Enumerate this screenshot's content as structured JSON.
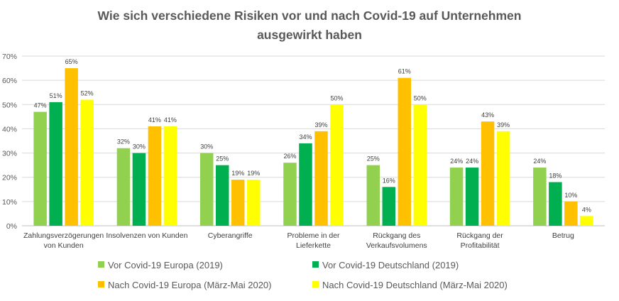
{
  "chart_data": {
    "type": "bar",
    "title_lines": [
      "Wie sich verschiedene Risiken vor und nach Covid-19 auf Unternehmen",
      "ausgewirkt haben"
    ],
    "xlabel": "",
    "ylabel": "",
    "ylim": [
      0,
      70
    ],
    "yticks": [
      0,
      10,
      20,
      30,
      40,
      50,
      60,
      70
    ],
    "ytick_labels": [
      "0%",
      "10%",
      "20%",
      "30%",
      "40%",
      "50%",
      "60%",
      "70%"
    ],
    "grid": true,
    "legend_position": "bottom",
    "categories": [
      [
        "Zahlungsverzögerungen",
        "von Kunden"
      ],
      [
        "Insolvenzen von Kunden"
      ],
      [
        "Cyberangriffe"
      ],
      [
        "Probleme in der",
        "Lieferkette"
      ],
      [
        "Rückgang des",
        "Verkaufsvolumens"
      ],
      [
        "Rückgang der",
        "Profitabilität"
      ],
      [
        "Betrug"
      ]
    ],
    "series": [
      {
        "name": "Vor Covid-19 Europa (2019)",
        "color": "#92d050",
        "values": [
          47,
          32,
          30,
          26,
          25,
          24,
          24
        ],
        "labels": [
          "47%",
          "32%",
          "30%",
          "26%",
          "25%",
          "24%",
          "24%"
        ]
      },
      {
        "name": "Vor Covid-19 Deutschland (2019)",
        "color": "#00b050",
        "values": [
          51,
          30,
          25,
          34,
          16,
          24,
          18
        ],
        "labels": [
          "51%",
          "30%",
          "25%",
          "34%",
          "16%",
          "24%",
          "18%"
        ]
      },
      {
        "name": "Nach Covid-19 Europa (März-Mai 2020)",
        "color": "#ffc000",
        "values": [
          65,
          41,
          19,
          39,
          61,
          43,
          10
        ],
        "labels": [
          "65%",
          "41%",
          "19%",
          "39%",
          "61%",
          "43%",
          "10%"
        ]
      },
      {
        "name": "Nach Covid-19 Deutschland (März-Mai 2020)",
        "color": "#ffff00",
        "values": [
          52,
          41,
          19,
          50,
          50,
          39,
          4
        ],
        "labels": [
          "52%",
          "41%",
          "19%",
          "50%",
          "50%",
          "39%",
          "4%"
        ]
      }
    ]
  }
}
